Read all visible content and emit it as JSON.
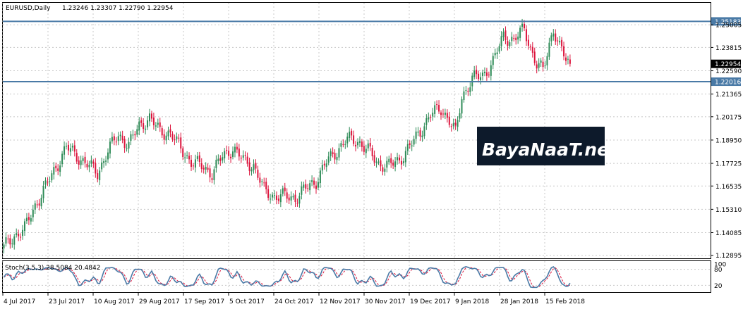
{
  "header": {
    "symbol": "EURUSD,Daily",
    "ohlc": "1.23246 1.23307 1.22790 1.22954"
  },
  "stoch_label": "Stoch(3,5,3) 28.5084 20.4842",
  "watermark": "BayaNaaT.net",
  "colors": {
    "up": "#2e8b57",
    "down": "#dc143c",
    "level_line": "#4a7aa6",
    "stoch_main": "#4a7aa6",
    "stoch_signal": "#dc143c",
    "grid": "#c8c8c8"
  },
  "chart_data": [
    {
      "type": "candlestick",
      "symbol": "EURUSD",
      "timeframe": "Daily",
      "last_price": "1.22954",
      "price_ticks": [
        "1.25005",
        "1.23815",
        "1.22590",
        "1.21365",
        "1.20175",
        "1.18950",
        "1.17725",
        "1.16535",
        "1.15310",
        "1.14085",
        "1.12895"
      ],
      "date_ticks": [
        "4 Jul 2017",
        "23 Jul 2017",
        "10 Aug 2017",
        "29 Aug 2017",
        "17 Sep 2017",
        "5 Oct 2017",
        "24 Oct 2017",
        "12 Nov 2017",
        "30 Nov 2017",
        "19 Dec 2017",
        "9 Jan 2018",
        "28 Jan 2018",
        "15 Feb 2018"
      ],
      "levels": [
        "1.25183",
        "1.22016"
      ],
      "ylim": [
        1.127,
        1.256
      ],
      "grid": true,
      "close_anchors": [
        [
          0,
          1.133
        ],
        [
          5,
          1.139
        ],
        [
          10,
          1.143
        ],
        [
          15,
          1.155
        ],
        [
          20,
          1.165
        ],
        [
          25,
          1.175
        ],
        [
          30,
          1.186
        ],
        [
          35,
          1.181
        ],
        [
          40,
          1.177
        ],
        [
          45,
          1.172
        ],
        [
          50,
          1.184
        ],
        [
          55,
          1.192
        ],
        [
          60,
          1.187
        ],
        [
          65,
          1.197
        ],
        [
          70,
          1.201
        ],
        [
          75,
          1.194
        ],
        [
          80,
          1.193
        ],
        [
          85,
          1.185
        ],
        [
          90,
          1.178
        ],
        [
          95,
          1.176
        ],
        [
          100,
          1.172
        ],
        [
          105,
          1.181
        ],
        [
          110,
          1.185
        ],
        [
          115,
          1.179
        ],
        [
          120,
          1.176
        ],
        [
          125,
          1.163
        ],
        [
          130,
          1.16
        ],
        [
          135,
          1.16
        ],
        [
          140,
          1.159
        ],
        [
          145,
          1.164
        ],
        [
          150,
          1.168
        ],
        [
          155,
          1.178
        ],
        [
          160,
          1.184
        ],
        [
          165,
          1.19
        ],
        [
          170,
          1.189
        ],
        [
          175,
          1.184
        ],
        [
          180,
          1.177
        ],
        [
          185,
          1.176
        ],
        [
          190,
          1.179
        ],
        [
          195,
          1.186
        ],
        [
          200,
          1.194
        ],
        [
          205,
          1.203
        ],
        [
          210,
          1.206
        ],
        [
          214,
          1.2
        ],
        [
          217,
          1.193
        ],
        [
          220,
          1.212
        ],
        [
          225,
          1.222
        ],
        [
          230,
          1.223
        ],
        [
          235,
          1.231
        ],
        [
          240,
          1.244
        ],
        [
          245,
          1.242
        ],
        [
          250,
          1.248
        ],
        [
          253,
          1.238
        ],
        [
          256,
          1.229
        ],
        [
          259,
          1.226
        ],
        [
          262,
          1.24
        ],
        [
          264,
          1.248
        ],
        [
          267,
          1.238
        ],
        [
          270,
          1.232
        ],
        [
          272,
          1.2295
        ]
      ],
      "stoch_levels": [
        "100",
        "80",
        "20"
      ],
      "stoch_main": {
        "last": 28.5084
      },
      "stoch_signal": {
        "last": 20.4842
      }
    }
  ]
}
